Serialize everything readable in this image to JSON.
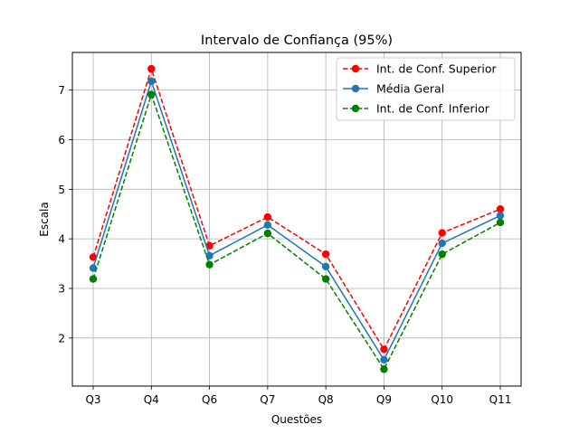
{
  "chart_data": {
    "type": "line",
    "title": "Intervalo de Confiança (95%)",
    "xlabel": "Questões",
    "ylabel": "Escala",
    "categories": [
      "Q3",
      "Q4",
      "Q6",
      "Q7",
      "Q8",
      "Q9",
      "Q10",
      "Q11"
    ],
    "ylim": [
      1.03,
      7.76
    ],
    "yticks": [
      2,
      3,
      4,
      5,
      6,
      7
    ],
    "grid": true,
    "legend_position": "top-right",
    "series": [
      {
        "name": "Int. de Conf. Superior",
        "values": [
          3.63,
          7.43,
          3.86,
          4.44,
          3.69,
          1.77,
          4.12,
          4.6
        ],
        "color": "#ff0000",
        "line_style": "dashed",
        "marker": "circle"
      },
      {
        "name": "Média Geral",
        "values": [
          3.41,
          7.18,
          3.66,
          4.28,
          3.44,
          1.56,
          3.91,
          4.47
        ],
        "color": "#1f77b4",
        "line_style": "solid",
        "marker": "circle"
      },
      {
        "name": "Int. de Conf. Inferior",
        "values": [
          3.19,
          6.91,
          3.48,
          4.11,
          3.19,
          1.37,
          3.69,
          4.33
        ],
        "color": "#008000",
        "line_style": "dashed",
        "marker": "circle"
      }
    ]
  }
}
